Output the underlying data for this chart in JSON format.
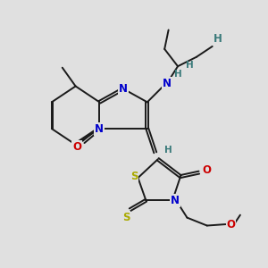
{
  "bg_color": "#e0e0e0",
  "bond_color": "#1a1a1a",
  "bond_width": 1.4,
  "dbo": 0.05,
  "atom_colors": {
    "N": "#0000cc",
    "O": "#cc0000",
    "S": "#aaaa00",
    "H": "#3a7a7a",
    "C": "#1a1a1a"
  },
  "fs": 8.5,
  "figsize": [
    3.0,
    3.0
  ],
  "dpi": 100
}
